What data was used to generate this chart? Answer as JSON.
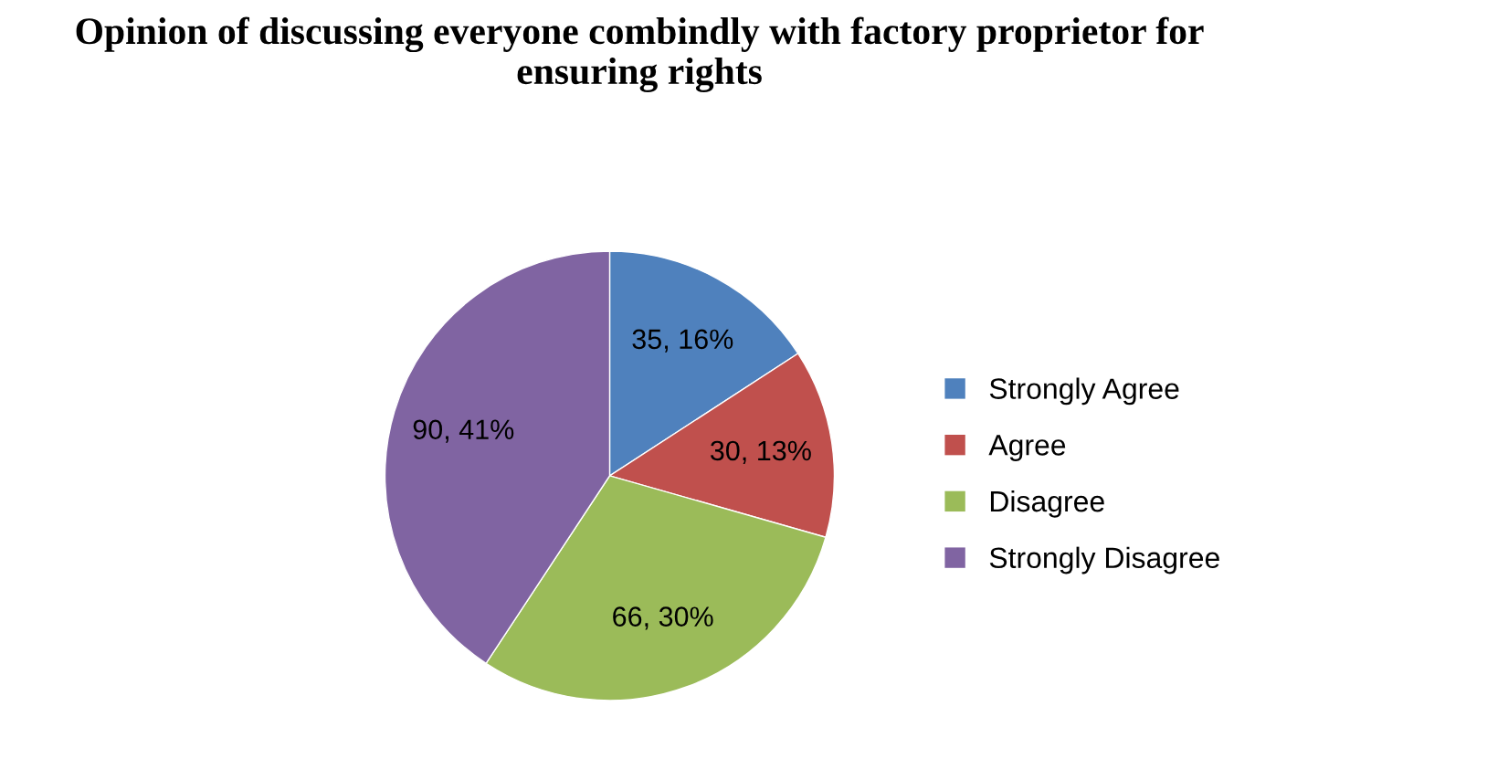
{
  "chart_data": {
    "type": "pie",
    "title": "Opinion of discussing everyone combindly with factory proprietor for ensuring rights",
    "categories": [
      "Strongly Agree",
      "Agree",
      "Disagree",
      "Strongly Disagree"
    ],
    "values": [
      35,
      30,
      66,
      90
    ],
    "colors": [
      "#4f81bd",
      "#c0504d",
      "#9bbb59",
      "#8064a2"
    ],
    "value_labels": [
      "35, 16%",
      "30, 13%",
      "66, 30%",
      "90, 41%"
    ],
    "legend": "right"
  }
}
